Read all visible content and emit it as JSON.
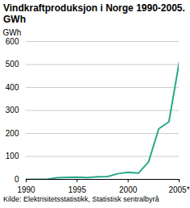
{
  "chart_data": {
    "type": "line",
    "title": "Vindkraftproduksjon i Norge 1990-2005. GWh",
    "y_label": "GWh",
    "source": "Kilde: Elektrisitetsstatistikk, Statistisk sentralbyrå",
    "x": [
      1990,
      1991,
      1992,
      1993,
      1994,
      1995,
      1996,
      1997,
      1998,
      1999,
      2000,
      2001,
      2002,
      2003,
      2004,
      2005
    ],
    "values": [
      0,
      0,
      0,
      7,
      9,
      10,
      8,
      11,
      12,
      25,
      31,
      27,
      76,
      220,
      251,
      508
    ],
    "color": "#2aa88a",
    "xlim": [
      1990,
      2005
    ],
    "xticks": [
      1990,
      1995,
      2000,
      {
        "value": 2005,
        "label": "2005*"
      }
    ],
    "ylim": [
      0,
      600
    ],
    "yticks": [
      0,
      100,
      200,
      300,
      400,
      500,
      600
    ],
    "grid": true
  }
}
